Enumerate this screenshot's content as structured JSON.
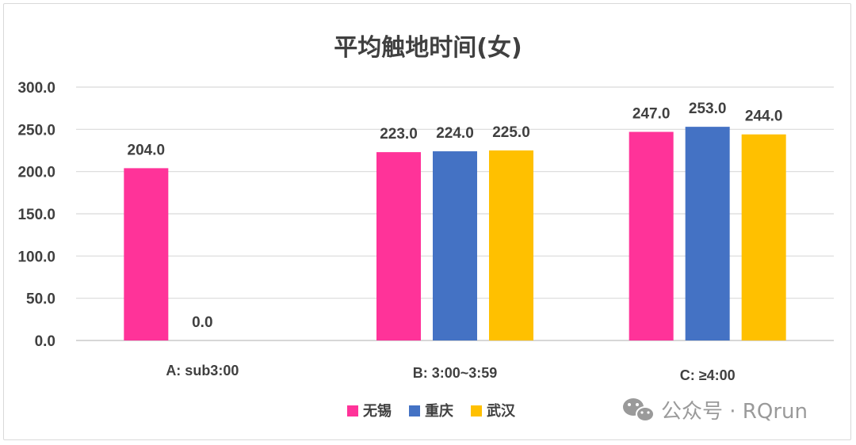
{
  "chart_data": {
    "type": "bar",
    "title": "平均触地时间(女)",
    "categories": [
      "A: sub3:00",
      "B: 3:00~3:59",
      "C: ≥4:00"
    ],
    "series": [
      {
        "name": "无锡",
        "color": "#ff3399",
        "values": [
          204.0,
          223.0,
          247.0
        ]
      },
      {
        "name": "重庆",
        "color": "#4472c4",
        "values": [
          0.0,
          224.0,
          253.0
        ]
      },
      {
        "name": "武汉",
        "color": "#ffc000",
        "values": [
          null,
          225.0,
          244.0
        ]
      }
    ],
    "yticks": [
      "0.0",
      "50.0",
      "100.0",
      "150.0",
      "200.0",
      "250.0",
      "300.0"
    ],
    "ylim": [
      0,
      300
    ],
    "grid": true,
    "legend_position": "bottom",
    "value_labels": true
  },
  "watermark": {
    "text": "公众号 · RQrun",
    "icon": "wechat-icon"
  }
}
